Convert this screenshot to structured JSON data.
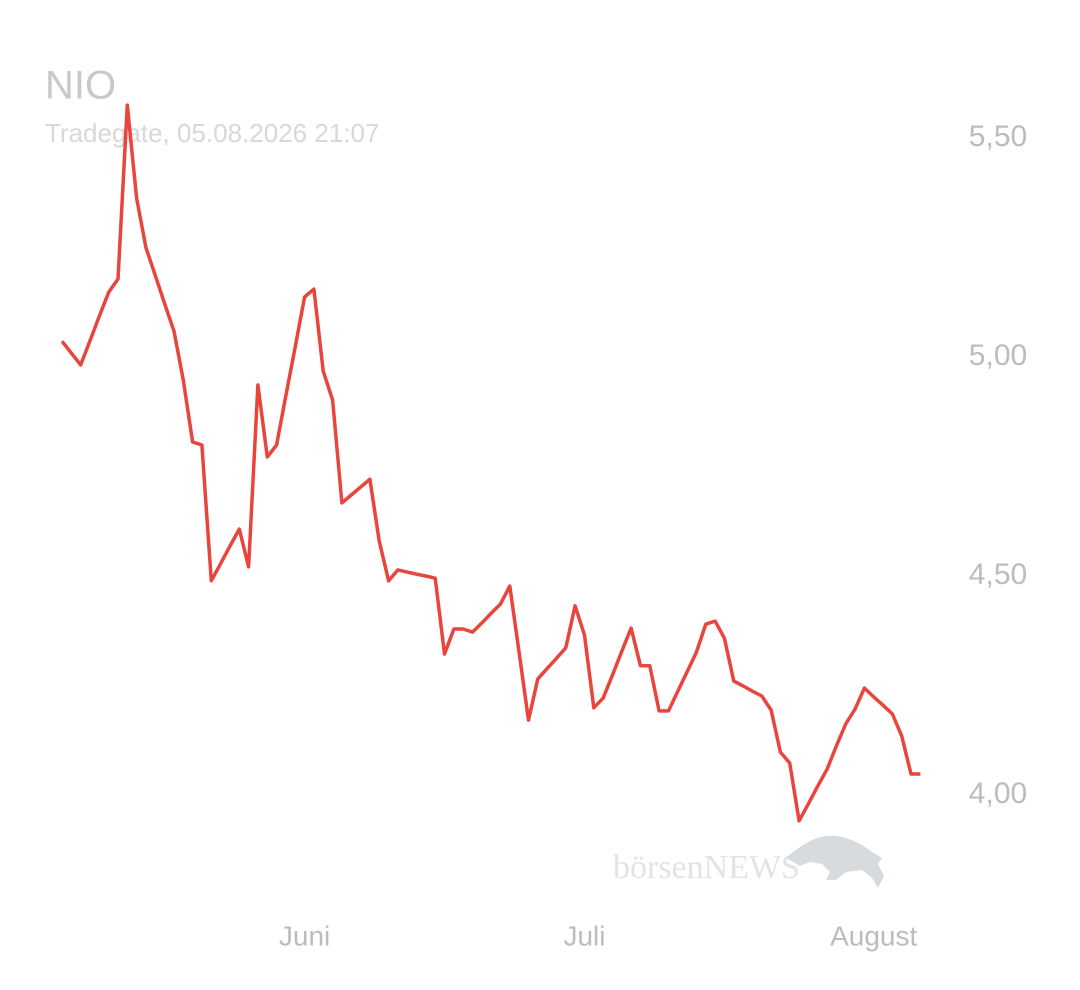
{
  "chart_data": {
    "type": "line",
    "title": "NIO",
    "subtitle": "Tradegate, 05.08.2026 21:07",
    "watermark": "börsenNEWS",
    "categories": [
      null,
      null,
      null,
      null,
      null,
      null,
      null,
      null,
      null,
      null,
      null,
      null,
      null,
      null,
      null,
      null,
      null,
      null,
      null,
      null,
      null,
      null,
      null,
      null,
      null,
      null,
      "Juni",
      null,
      null,
      null,
      null,
      null,
      null,
      null,
      null,
      null,
      null,
      null,
      null,
      null,
      null,
      null,
      null,
      null,
      null,
      null,
      null,
      null,
      null,
      null,
      null,
      null,
      null,
      null,
      null,
      null,
      "Juli",
      null,
      null,
      null,
      null,
      null,
      null,
      null,
      null,
      null,
      null,
      null,
      null,
      null,
      null,
      null,
      null,
      null,
      null,
      null,
      null,
      null,
      null,
      null,
      null,
      null,
      null,
      null,
      null,
      null,
      null,
      "August",
      null,
      null,
      null,
      null,
      null
    ],
    "series": [
      {
        "name": "NIO",
        "color": "#e8453c",
        "values": [
          5.036,
          5.009,
          4.982,
          5.037,
          5.093,
          5.148,
          5.178,
          5.575,
          5.363,
          5.249,
          5.186,
          5.122,
          5.059,
          4.947,
          4.806,
          4.799,
          4.489,
          4.528,
          4.568,
          4.607,
          4.521,
          4.936,
          4.772,
          4.799,
          4.912,
          5.024,
          5.137,
          5.155,
          4.968,
          4.902,
          4.667,
          4.685,
          4.703,
          4.721,
          4.58,
          4.489,
          4.514,
          4.509,
          4.504,
          4.5,
          4.495,
          4.322,
          4.379,
          4.379,
          4.372,
          4.393,
          4.415,
          4.436,
          4.477,
          4.324,
          4.171,
          4.265,
          4.289,
          4.312,
          4.336,
          4.432,
          4.365,
          4.199,
          4.221,
          4.274,
          4.328,
          4.381,
          4.295,
          4.295,
          4.192,
          4.192,
          4.237,
          4.281,
          4.326,
          4.39,
          4.397,
          4.358,
          4.26,
          4.249,
          4.237,
          4.226,
          4.194,
          4.098,
          4.073,
          3.941,
          3.98,
          4.02,
          4.059,
          4.112,
          4.162,
          4.196,
          4.244,
          4.224,
          4.205,
          4.185,
          4.135,
          4.048,
          4.048
        ]
      }
    ],
    "ylim": [
      3.8,
      5.7
    ],
    "yticks": [
      {
        "value": 4,
        "label": "4,00"
      },
      {
        "value": 4.5,
        "label": "4,50"
      },
      {
        "value": 5,
        "label": "5,00"
      },
      {
        "value": 5.5,
        "label": "5,50"
      }
    ],
    "grid": false
  }
}
